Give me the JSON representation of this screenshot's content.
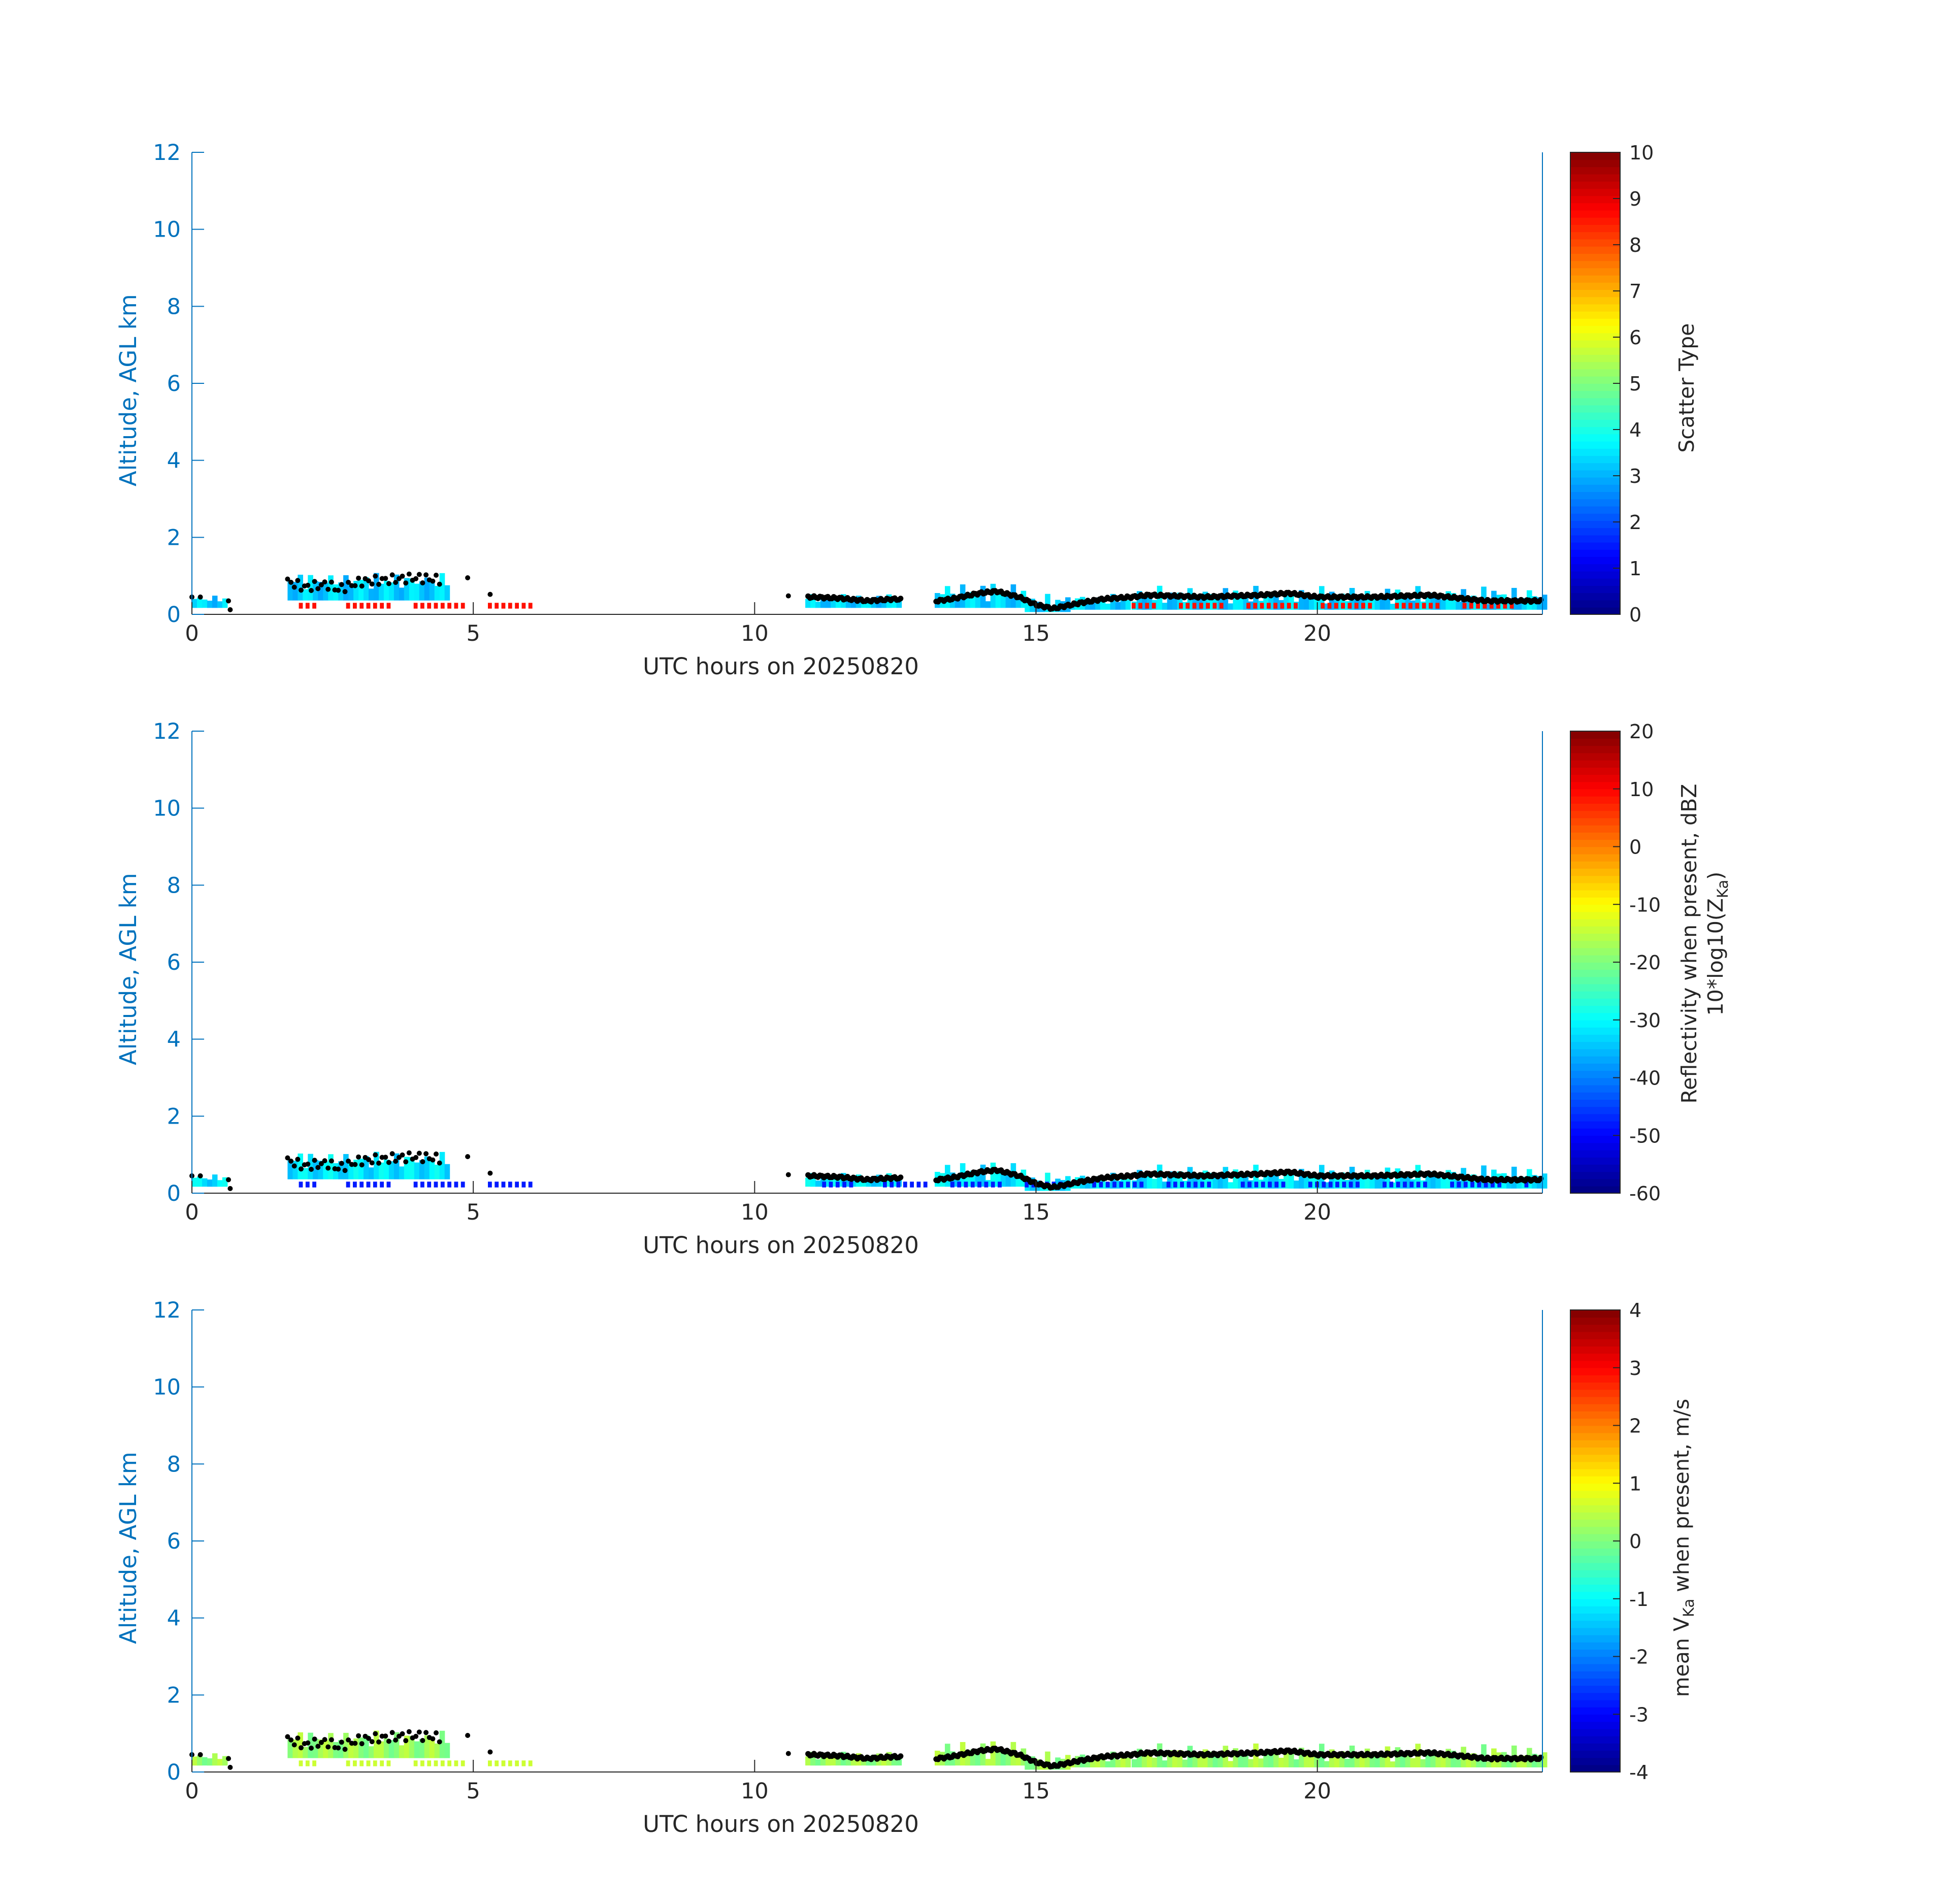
{
  "chart_data": [
    {
      "type": "heatmap",
      "xlabel": "UTC hours on 20250820",
      "ylabel": "Altitude, AGL km",
      "xlim": [
        0,
        24
      ],
      "ylim": [
        0,
        12
      ],
      "xticks": [
        "0",
        "5",
        "10",
        "15",
        "20"
      ],
      "yticks": [
        "0",
        "2",
        "4",
        "6",
        "8",
        "10",
        "12"
      ],
      "colorbar": {
        "label_lines": [
          "Scatter Type"
        ],
        "range": [
          0,
          10
        ],
        "ticks": [
          "0",
          "1",
          "2",
          "3",
          "4",
          "5",
          "6",
          "7",
          "8",
          "9",
          "10"
        ],
        "colormap": "jet"
      },
      "field_value": 3.3,
      "lower_value": 8.6,
      "lower_bands": [
        [
          1.9,
          6.0
        ],
        [
          16.7,
          23.5
        ]
      ]
    },
    {
      "type": "heatmap",
      "xlabel": "UTC hours on 20250820",
      "ylabel": "Altitude, AGL km",
      "xlim": [
        0,
        24
      ],
      "ylim": [
        0,
        12
      ],
      "xticks": [
        "0",
        "5",
        "10",
        "15",
        "20"
      ],
      "yticks": [
        "0",
        "2",
        "4",
        "6",
        "8",
        "10",
        "12"
      ],
      "colorbar": {
        "label_lines": [
          "Reflectivity when present, dBZ",
          "10*log10(Z",
          "Ka",
          ")"
        ],
        "range": [
          -60,
          20
        ],
        "ticks": [
          "-60",
          "-50",
          "-40",
          "-30",
          "-20",
          "-10",
          "0",
          "10",
          "20"
        ],
        "colormap": "jet"
      },
      "field_value": -32,
      "lower_value": -48,
      "lower_bands": [
        [
          1.9,
          6.0
        ],
        [
          11.2,
          23.8
        ]
      ]
    },
    {
      "type": "heatmap",
      "xlabel": "UTC hours on 20250820",
      "ylabel": "Altitude, AGL km",
      "xlim": [
        0,
        24
      ],
      "ylim": [
        0,
        12
      ],
      "xticks": [
        "0",
        "5",
        "10",
        "15",
        "20"
      ],
      "yticks": [
        "0",
        "2",
        "4",
        "6",
        "8",
        "10",
        "12"
      ],
      "colorbar": {
        "label_lines": [
          "mean V",
          "Ka",
          " when present, m/s"
        ],
        "range": [
          -4,
          4
        ],
        "ticks": [
          "-4",
          "-3",
          "-2",
          "-1",
          "0",
          "1",
          "2",
          "3",
          "4"
        ],
        "colormap": "jet"
      },
      "field_value": 0.2,
      "lower_value": 0.6,
      "lower_bands": [
        [
          1.9,
          6.0
        ]
      ]
    }
  ],
  "cloud_top_km": [
    [
      0.0,
      0.5
    ],
    [
      0.5,
      0.5
    ],
    [
      1.7,
      1.05
    ],
    [
      2.5,
      1.0
    ],
    [
      3.2,
      0.95
    ],
    [
      4.4,
      1.0
    ],
    [
      10.8,
      0.55
    ],
    [
      12.5,
      0.45
    ],
    [
      13.2,
      0.5
    ],
    [
      14.0,
      0.8
    ],
    [
      14.6,
      0.6
    ],
    [
      15.2,
      0.3
    ],
    [
      15.8,
      0.45
    ],
    [
      16.6,
      0.5
    ],
    [
      17.0,
      0.65
    ],
    [
      18.5,
      0.7
    ],
    [
      19.2,
      0.8
    ],
    [
      20.0,
      0.65
    ],
    [
      21.0,
      0.7
    ],
    [
      22.0,
      0.75
    ],
    [
      23.0,
      0.7
    ],
    [
      24.0,
      0.65
    ]
  ],
  "cloud_base_km": [
    [
      0.0,
      0.45
    ],
    [
      0.1,
      0.42
    ],
    [
      0.6,
      0.35
    ],
    [
      0.7,
      0.15
    ],
    [
      1.7,
      0.85
    ],
    [
      2.0,
      0.7
    ],
    [
      2.4,
      0.78
    ],
    [
      2.6,
      0.65
    ],
    [
      3.0,
      0.85
    ],
    [
      3.5,
      0.9
    ],
    [
      4.0,
      0.95
    ],
    [
      4.4,
      0.9
    ],
    [
      4.9,
      0.95
    ],
    [
      5.3,
      0.5
    ],
    [
      10.6,
      0.45
    ],
    [
      11.0,
      0.45
    ],
    [
      11.5,
      0.42
    ],
    [
      12.0,
      0.35
    ],
    [
      12.5,
      0.4
    ],
    [
      13.0,
      0.3
    ],
    [
      13.5,
      0.4
    ],
    [
      14.0,
      0.55
    ],
    [
      14.3,
      0.6
    ],
    [
      14.7,
      0.45
    ],
    [
      15.0,
      0.25
    ],
    [
      15.3,
      0.15
    ],
    [
      15.8,
      0.3
    ],
    [
      16.2,
      0.4
    ],
    [
      16.7,
      0.45
    ],
    [
      17.0,
      0.5
    ],
    [
      18.0,
      0.45
    ],
    [
      19.0,
      0.5
    ],
    [
      19.5,
      0.55
    ],
    [
      20.0,
      0.45
    ],
    [
      21.0,
      0.45
    ],
    [
      22.0,
      0.5
    ],
    [
      23.0,
      0.35
    ],
    [
      24.0,
      0.35
    ]
  ],
  "echo_segments": [
    [
      0.0,
      0.6,
      0.28,
      0.5
    ],
    [
      1.7,
      4.5,
      0.6,
      1.1
    ],
    [
      10.9,
      12.6,
      0.28,
      0.55
    ],
    [
      13.2,
      14.8,
      0.28,
      0.85
    ],
    [
      14.8,
      15.6,
      0.1,
      0.55
    ],
    [
      15.6,
      16.6,
      0.2,
      0.55
    ],
    [
      16.7,
      24.0,
      0.2,
      0.75
    ]
  ]
}
